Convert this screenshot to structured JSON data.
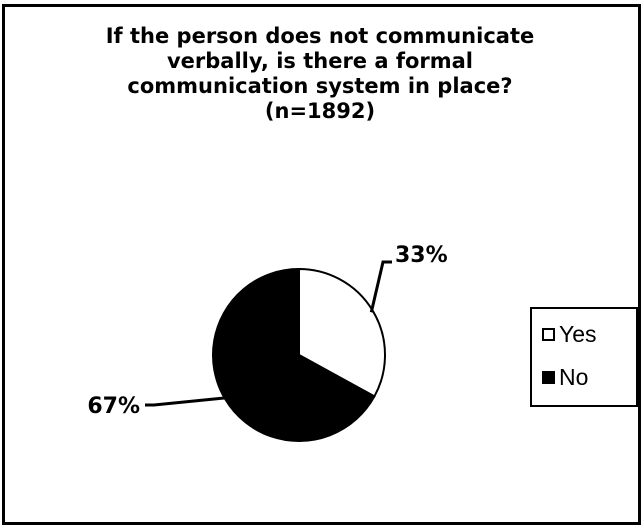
{
  "chart_data": {
    "type": "pie",
    "title_lines": [
      "If the person does not communicate",
      "verbally, is there a formal",
      "communication system in place?",
      "(n=1892)"
    ],
    "slices": [
      {
        "label": "Yes",
        "value": 33,
        "data_label": "33%",
        "color": "#ffffff"
      },
      {
        "label": "No",
        "value": 67,
        "data_label": "67%",
        "color": "#000000"
      }
    ],
    "legend": {
      "position": "right",
      "entries": [
        "Yes",
        "No"
      ]
    }
  }
}
